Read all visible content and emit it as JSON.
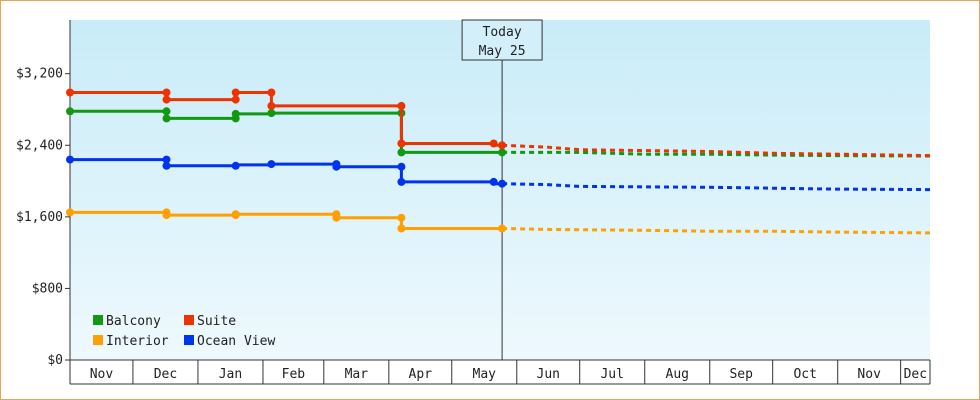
{
  "chart_data": {
    "type": "line",
    "title": "",
    "xlabel": "",
    "ylabel": "",
    "ylim": [
      0,
      3800
    ],
    "y_ticks": [
      0,
      800,
      1600,
      2400,
      3200
    ],
    "y_tick_labels": [
      "$0",
      "$800",
      "$1,600",
      "$2,400",
      "$3,200"
    ],
    "x_ticks": [
      "2023-11-01",
      "2023-12-01",
      "2024-01-01",
      "2024-02-01",
      "2024-03-01",
      "2024-04-01",
      "2024-05-01",
      "2024-06-01",
      "2024-07-01",
      "2024-08-01",
      "2024-09-01",
      "2024-10-01",
      "2024-11-01",
      "2024-12-01"
    ],
    "x_tick_labels": [
      "Nov",
      "Dec",
      "Jan",
      "Feb",
      "Mar",
      "Apr",
      "May",
      "Jun",
      "Jul",
      "Aug",
      "Sep",
      "Oct",
      "Nov",
      "Dec"
    ],
    "xlim": [
      "2023-11-01",
      "2024-12-15"
    ],
    "grid": false,
    "legend_position": "bottom-left",
    "today": {
      "date": "2024-05-25",
      "label_line1": "Today",
      "label_line2": "May 25"
    },
    "series": [
      {
        "name": "Balcony",
        "color": "#119911",
        "history": [
          [
            "2023-11-01",
            2780
          ],
          [
            "2023-12-17",
            2780
          ],
          [
            "2023-12-17",
            2700
          ],
          [
            "2024-01-19",
            2700
          ],
          [
            "2024-01-19",
            2750
          ],
          [
            "2024-02-05",
            2750
          ],
          [
            "2024-02-05",
            2760
          ],
          [
            "2024-04-07",
            2760
          ],
          [
            "2024-04-07",
            2320
          ],
          [
            "2024-05-25",
            2320
          ]
        ],
        "markers": [
          [
            "2023-11-01",
            2780
          ],
          [
            "2023-12-17",
            2780
          ],
          [
            "2023-12-17",
            2700
          ],
          [
            "2024-01-19",
            2700
          ],
          [
            "2024-01-19",
            2750
          ],
          [
            "2024-02-05",
            2760
          ],
          [
            "2024-04-07",
            2760
          ],
          [
            "2024-04-07",
            2320
          ],
          [
            "2024-05-25",
            2320
          ]
        ],
        "forecast": [
          [
            "2024-05-25",
            2320
          ],
          [
            "2024-07-01",
            2320
          ],
          [
            "2024-08-01",
            2300
          ],
          [
            "2024-09-01",
            2300
          ],
          [
            "2024-10-01",
            2290
          ],
          [
            "2024-11-01",
            2285
          ],
          [
            "2024-12-15",
            2280
          ]
        ]
      },
      {
        "name": "Suite",
        "color": "#ee3300",
        "history": [
          [
            "2023-11-01",
            2990
          ],
          [
            "2023-12-17",
            2990
          ],
          [
            "2023-12-17",
            2910
          ],
          [
            "2024-01-19",
            2910
          ],
          [
            "2024-01-19",
            2990
          ],
          [
            "2024-02-05",
            2990
          ],
          [
            "2024-02-05",
            2840
          ],
          [
            "2024-04-07",
            2840
          ],
          [
            "2024-04-07",
            2420
          ],
          [
            "2024-05-21",
            2420
          ],
          [
            "2024-05-21",
            2400
          ],
          [
            "2024-05-25",
            2400
          ]
        ],
        "markers": [
          [
            "2023-11-01",
            2990
          ],
          [
            "2023-12-17",
            2990
          ],
          [
            "2023-12-17",
            2910
          ],
          [
            "2024-01-19",
            2910
          ],
          [
            "2024-01-19",
            2990
          ],
          [
            "2024-02-05",
            2990
          ],
          [
            "2024-02-05",
            2840
          ],
          [
            "2024-04-07",
            2840
          ],
          [
            "2024-04-07",
            2420
          ],
          [
            "2024-05-21",
            2420
          ],
          [
            "2024-05-25",
            2400
          ]
        ],
        "forecast": [
          [
            "2024-05-25",
            2400
          ],
          [
            "2024-06-15",
            2380
          ],
          [
            "2024-07-01",
            2350
          ],
          [
            "2024-08-01",
            2340
          ],
          [
            "2024-09-01",
            2330
          ],
          [
            "2024-10-01",
            2310
          ],
          [
            "2024-11-01",
            2300
          ],
          [
            "2024-12-15",
            2285
          ]
        ]
      },
      {
        "name": "Interior",
        "color": "#ffa000",
        "history": [
          [
            "2023-11-01",
            1650
          ],
          [
            "2023-12-17",
            1650
          ],
          [
            "2023-12-17",
            1620
          ],
          [
            "2024-01-19",
            1620
          ],
          [
            "2024-01-19",
            1630
          ],
          [
            "2024-03-07",
            1630
          ],
          [
            "2024-03-07",
            1590
          ],
          [
            "2024-04-07",
            1590
          ],
          [
            "2024-04-07",
            1470
          ],
          [
            "2024-05-25",
            1470
          ]
        ],
        "markers": [
          [
            "2023-11-01",
            1650
          ],
          [
            "2023-12-17",
            1650
          ],
          [
            "2023-12-17",
            1620
          ],
          [
            "2024-01-19",
            1620
          ],
          [
            "2024-01-19",
            1630
          ],
          [
            "2024-03-07",
            1630
          ],
          [
            "2024-03-07",
            1590
          ],
          [
            "2024-04-07",
            1590
          ],
          [
            "2024-04-07",
            1470
          ],
          [
            "2024-05-25",
            1470
          ]
        ],
        "forecast": [
          [
            "2024-05-25",
            1470
          ],
          [
            "2024-06-15",
            1460
          ],
          [
            "2024-08-01",
            1450
          ],
          [
            "2024-09-01",
            1440
          ],
          [
            "2024-10-01",
            1440
          ],
          [
            "2024-11-01",
            1430
          ],
          [
            "2024-12-15",
            1420
          ]
        ]
      },
      {
        "name": "Ocean View",
        "color": "#0033ee",
        "history": [
          [
            "2023-11-01",
            2240
          ],
          [
            "2023-12-17",
            2240
          ],
          [
            "2023-12-17",
            2170
          ],
          [
            "2024-01-19",
            2170
          ],
          [
            "2024-01-19",
            2180
          ],
          [
            "2024-02-05",
            2180
          ],
          [
            "2024-02-05",
            2190
          ],
          [
            "2024-03-07",
            2190
          ],
          [
            "2024-03-07",
            2160
          ],
          [
            "2024-04-07",
            2160
          ],
          [
            "2024-04-07",
            1990
          ],
          [
            "2024-05-21",
            1990
          ],
          [
            "2024-05-21",
            1970
          ],
          [
            "2024-05-25",
            1970
          ]
        ],
        "markers": [
          [
            "2023-11-01",
            2240
          ],
          [
            "2023-12-17",
            2240
          ],
          [
            "2023-12-17",
            2170
          ],
          [
            "2024-01-19",
            2170
          ],
          [
            "2024-02-05",
            2190
          ],
          [
            "2024-03-07",
            2190
          ],
          [
            "2024-03-07",
            2160
          ],
          [
            "2024-04-07",
            2160
          ],
          [
            "2024-04-07",
            1990
          ],
          [
            "2024-05-21",
            1990
          ],
          [
            "2024-05-25",
            1970
          ]
        ],
        "forecast": [
          [
            "2024-05-25",
            1970
          ],
          [
            "2024-06-15",
            1960
          ],
          [
            "2024-07-01",
            1940
          ],
          [
            "2024-09-01",
            1930
          ],
          [
            "2024-10-01",
            1920
          ],
          [
            "2024-11-01",
            1910
          ],
          [
            "2024-12-15",
            1905
          ]
        ]
      }
    ]
  },
  "legend": {
    "items": [
      {
        "label": "Balcony",
        "color": "#119911"
      },
      {
        "label": "Suite",
        "color": "#ee3300"
      },
      {
        "label": "Interior",
        "color": "#ffa000"
      },
      {
        "label": "Ocean View",
        "color": "#0033ee"
      }
    ]
  }
}
